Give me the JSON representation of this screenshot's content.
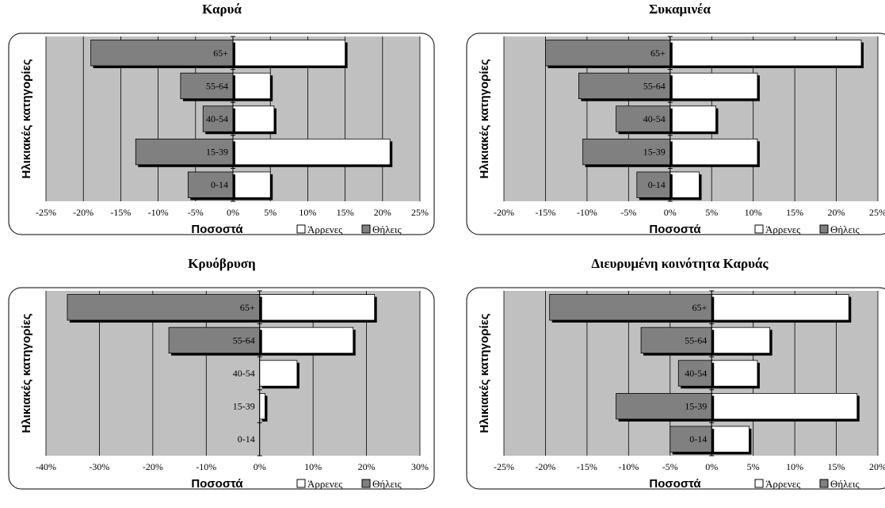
{
  "chart_data": [
    {
      "type": "bar",
      "orientation": "horizontal",
      "title": "Καρυά",
      "xlabel": "Ποσοστά",
      "ylabel": "Ηλικιακές κατηγορίες",
      "categories": [
        "0-14",
        "15-39",
        "40-54",
        "55-64",
        "65+"
      ],
      "series": [
        {
          "name": "Άρρενες",
          "color": "#ffffff",
          "values": [
            5,
            21,
            5.5,
            5,
            15
          ]
        },
        {
          "name": "Θήλεις",
          "color": "#808080",
          "values": [
            -6,
            -13,
            -4,
            -7,
            -19
          ]
        }
      ],
      "xlim": [
        -25,
        25
      ],
      "xticks": [
        -25,
        -20,
        -15,
        -10,
        -5,
        0,
        5,
        10,
        15,
        20,
        25
      ],
      "grid": true,
      "legend": "bottom-right"
    },
    {
      "type": "bar",
      "orientation": "horizontal",
      "title": "Συκαμινέα",
      "xlabel": "Ποσοστά",
      "ylabel": "Ηλικιακές κατηγορίες",
      "categories": [
        "0-14",
        "15-39",
        "40-54",
        "55-64",
        "65+"
      ],
      "series": [
        {
          "name": "Άρρενες",
          "color": "#ffffff",
          "values": [
            3.5,
            10.5,
            5.5,
            10.5,
            23
          ]
        },
        {
          "name": "Θήλεις",
          "color": "#808080",
          "values": [
            -4,
            -10.5,
            -6.5,
            -11,
            -15
          ]
        }
      ],
      "xlim": [
        -20,
        25
      ],
      "xticks": [
        -20,
        -15,
        -10,
        -5,
        0,
        5,
        10,
        15,
        20,
        25
      ],
      "grid": true,
      "legend": "bottom-right"
    },
    {
      "type": "bar",
      "orientation": "horizontal",
      "title": "Κρυόβρυση",
      "xlabel": "Ποσοστά",
      "ylabel": "Ηλικιακές κατηγορίες",
      "categories": [
        "0-14",
        "15-39",
        "40-54",
        "55-64",
        "65+"
      ],
      "series": [
        {
          "name": "Άρρενες",
          "color": "#ffffff",
          "values": [
            0,
            1,
            7,
            17.5,
            21.5
          ]
        },
        {
          "name": "Θήλεις",
          "color": "#808080",
          "values": [
            0,
            0,
            0,
            -17,
            -36
          ]
        }
      ],
      "xlim": [
        -40,
        30
      ],
      "xticks": [
        -40,
        -30,
        -20,
        -10,
        0,
        10,
        20,
        30
      ],
      "grid": true,
      "legend": "bottom-right"
    },
    {
      "type": "bar",
      "orientation": "horizontal",
      "title": "Διευρυμένη κοινότητα Καρυάς",
      "xlabel": "Ποσοστά",
      "ylabel": "Ηλικιακές κατηγορίες",
      "categories": [
        "0-14",
        "15-39",
        "40-54",
        "55-64",
        "65+"
      ],
      "series": [
        {
          "name": "Άρρενες",
          "color": "#ffffff",
          "values": [
            4.5,
            17.5,
            5.5,
            7,
            16.5
          ]
        },
        {
          "name": "Θήλεις",
          "color": "#808080",
          "values": [
            -5,
            -11.5,
            -4,
            -8.5,
            -19.5
          ]
        }
      ],
      "xlim": [
        -25,
        20
      ],
      "xticks": [
        -25,
        -20,
        -15,
        -10,
        -5,
        0,
        5,
        10,
        15,
        20
      ],
      "grid": true,
      "legend": "bottom-right"
    }
  ]
}
